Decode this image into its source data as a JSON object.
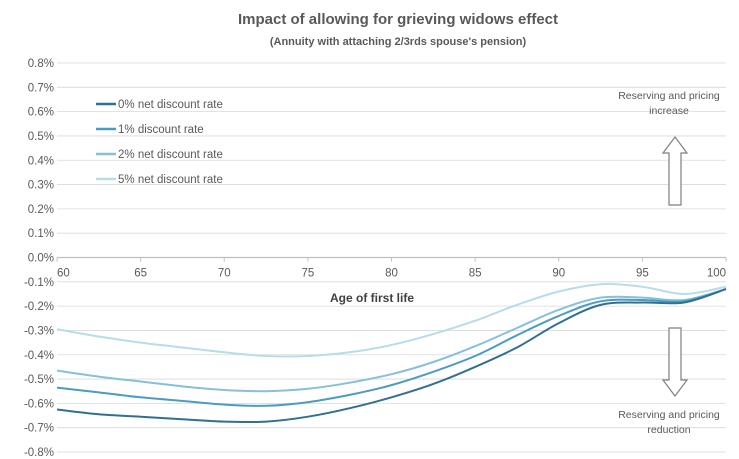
{
  "chart_data": {
    "type": "line",
    "title": "Impact of allowing for grieving widows effect",
    "subtitle": "(Annuity with attaching 2/3rds spouse's pension)",
    "xlabel": "Age of first life",
    "ylabel": "",
    "xlim": [
      60,
      100
    ],
    "ylim": [
      -0.8,
      0.8
    ],
    "x_ticks": [
      "60",
      "65",
      "70",
      "75",
      "80",
      "85",
      "90",
      "95",
      "100"
    ],
    "y_ticks": [
      "0.8%",
      "0.7%",
      "0.6%",
      "0.5%",
      "0.4%",
      "0.3%",
      "0.2%",
      "0.1%",
      "0.0%",
      "-0.1%",
      "-0.2%",
      "-0.3%",
      "-0.4%",
      "-0.5%",
      "-0.6%",
      "-0.7%",
      "-0.8%"
    ],
    "grid": "horizontal",
    "legend_position": "top-left",
    "x": [
      60,
      62.5,
      65,
      67.5,
      70,
      72.5,
      75,
      77.5,
      80,
      82.5,
      85,
      87.5,
      90,
      92.5,
      95,
      97.5,
      100
    ],
    "series": [
      {
        "name": "0% net discount rate",
        "color": "#31708f",
        "values": [
          -0.625,
          -0.645,
          -0.655,
          -0.665,
          -0.675,
          -0.675,
          -0.655,
          -0.62,
          -0.575,
          -0.52,
          -0.45,
          -0.37,
          -0.27,
          -0.195,
          -0.185,
          -0.185,
          -0.13
        ]
      },
      {
        "name": "1% discount rate",
        "color": "#4b9cc0",
        "values": [
          -0.535,
          -0.555,
          -0.575,
          -0.59,
          -0.605,
          -0.61,
          -0.595,
          -0.565,
          -0.525,
          -0.47,
          -0.405,
          -0.32,
          -0.24,
          -0.18,
          -0.175,
          -0.18,
          -0.13
        ]
      },
      {
        "name": "2% net discount rate",
        "color": "#86c0d9",
        "values": [
          -0.465,
          -0.49,
          -0.51,
          -0.53,
          -0.545,
          -0.55,
          -0.54,
          -0.515,
          -0.48,
          -0.43,
          -0.365,
          -0.29,
          -0.215,
          -0.165,
          -0.165,
          -0.175,
          -0.13
        ]
      },
      {
        "name": "5% net discount rate",
        "color": "#b7dcea",
        "values": [
          -0.295,
          -0.325,
          -0.35,
          -0.37,
          -0.39,
          -0.405,
          -0.405,
          -0.39,
          -0.36,
          -0.315,
          -0.26,
          -0.195,
          -0.14,
          -0.11,
          -0.12,
          -0.15,
          -0.12
        ]
      }
    ],
    "annotations": [
      {
        "text_lines": [
          "Reserving and pricing",
          "increase"
        ],
        "arrow": "up"
      },
      {
        "text_lines": [
          "Reserving and pricing",
          "reduction"
        ],
        "arrow": "down"
      }
    ]
  }
}
